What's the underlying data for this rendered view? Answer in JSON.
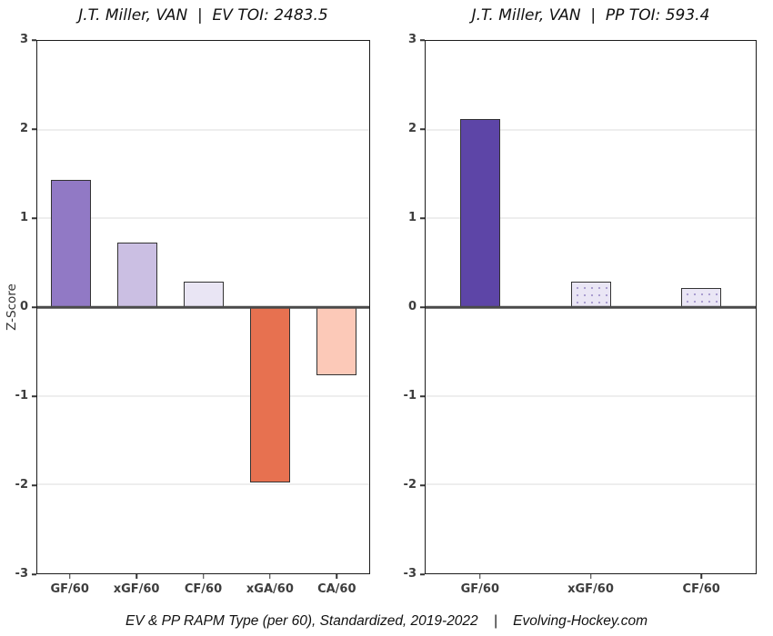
{
  "page": {
    "caption": "EV & PP RAPM Type (per 60), Standardized, 2019-2022    |    Evolving-Hockey.com"
  },
  "axis": {
    "ylabel": "Z-Score",
    "yticks": [
      3,
      2,
      1,
      0,
      -1,
      -2,
      -3
    ]
  },
  "colors": {
    "grid": "#dedede",
    "zero_line": "#4a4a4a",
    "spine": "#1c1c1c",
    "bar_border": "#333333",
    "tick_text": "#3d3d3d"
  },
  "chart_data": [
    {
      "type": "bar",
      "title": "J.T. Miller, VAN  |  EV TOI: 2483.5",
      "categories": [
        "GF/60",
        "xGF/60",
        "CF/60",
        "xGA/60",
        "CA/60"
      ],
      "values": [
        1.43,
        0.73,
        0.29,
        -1.98,
        -0.77
      ],
      "bar_colors": [
        "#9179C5",
        "#CBBFE3",
        "#E9E5F4",
        "#E77150",
        "#FCC9B8"
      ],
      "dotted": [
        false,
        false,
        false,
        false,
        false
      ],
      "xlabel": "",
      "ylabel": "Z-Score",
      "ylim": [
        -3,
        3
      ],
      "grid": true,
      "legend": "none"
    },
    {
      "type": "bar",
      "title": "J.T. Miller, VAN  |  PP TOI: 593.4",
      "categories": [
        "GF/60",
        "xGF/60",
        "CF/60"
      ],
      "values": [
        2.12,
        0.29,
        0.22
      ],
      "bar_colors": [
        "#5D45A7",
        "#EAE6F5",
        "#EAE6F5"
      ],
      "dotted": [
        false,
        true,
        true
      ],
      "xlabel": "",
      "ylabel": "",
      "ylim": [
        -3,
        3
      ],
      "grid": true,
      "legend": "none"
    }
  ]
}
